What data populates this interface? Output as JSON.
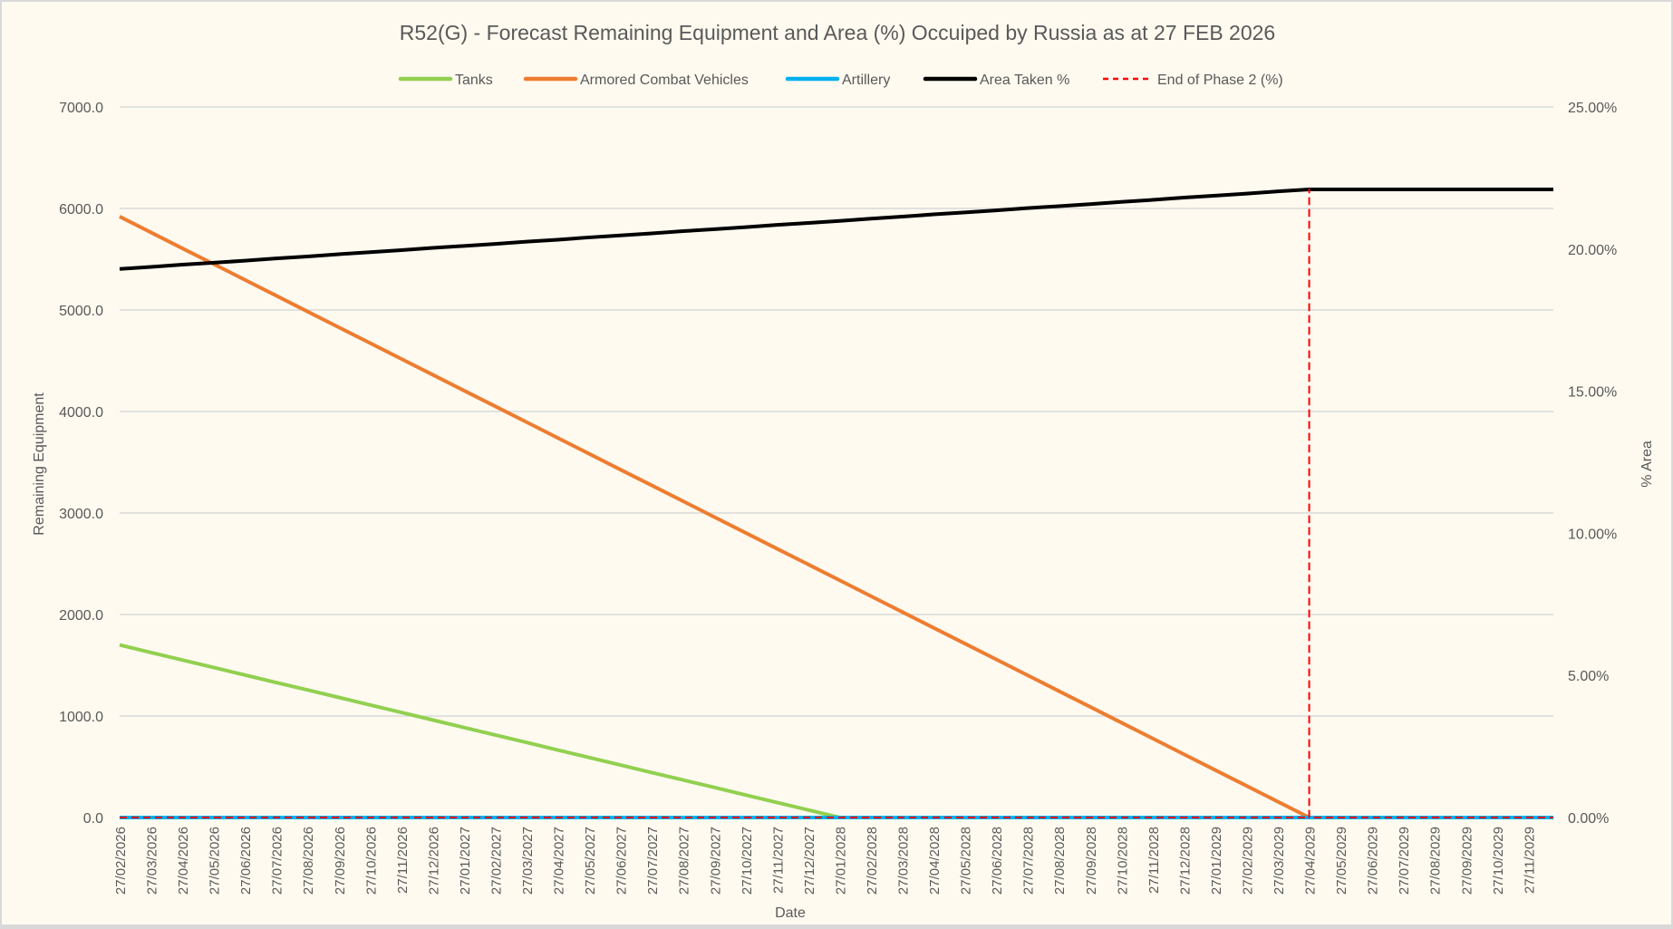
{
  "chart_data": {
    "type": "line",
    "title": "R52(G) - Forecast Remaining Equipment and Area (%) Occuiped by Russia as at 27 FEB 2026",
    "xlabel": "Date",
    "ylabel": "Remaining Equipment",
    "y2label": "% Area",
    "ylim": [
      0,
      7000
    ],
    "y2lim": [
      0,
      25
    ],
    "yticks": [
      "0.0",
      "1000.0",
      "2000.0",
      "3000.0",
      "4000.0",
      "5000.0",
      "6000.0",
      "7000.0"
    ],
    "y2ticks": [
      "0.00%",
      "5.00%",
      "10.00%",
      "15.00%",
      "20.00%",
      "25.00%"
    ],
    "xlim_index": [
      0,
      45.8
    ],
    "grid": true,
    "legend_position": "top",
    "categories": [
      "27/02/2026",
      "27/03/2026",
      "27/04/2026",
      "27/05/2026",
      "27/06/2026",
      "27/07/2026",
      "27/08/2026",
      "27/09/2026",
      "27/10/2026",
      "27/11/2026",
      "27/12/2026",
      "27/01/2027",
      "27/02/2027",
      "27/03/2027",
      "27/04/2027",
      "27/05/2027",
      "27/06/2027",
      "27/07/2027",
      "27/08/2027",
      "27/09/2027",
      "27/10/2027",
      "27/11/2027",
      "27/12/2027",
      "27/01/2028",
      "27/02/2028",
      "27/03/2028",
      "27/04/2028",
      "27/05/2028",
      "27/06/2028",
      "27/07/2028",
      "27/08/2028",
      "27/09/2028",
      "27/10/2028",
      "27/11/2028",
      "27/12/2028",
      "27/01/2029",
      "27/02/2029",
      "27/03/2029",
      "27/04/2029",
      "27/05/2029",
      "27/06/2029",
      "27/07/2029",
      "27/08/2029",
      "27/09/2029",
      "27/10/2029",
      "27/11/2029"
    ],
    "series": [
      {
        "name": "Tanks",
        "axis": "left",
        "color": "#92d050",
        "dash": false,
        "values": [
          1700,
          1626,
          1552,
          1478,
          1404,
          1330,
          1257,
          1183,
          1109,
          1035,
          961,
          887,
          813,
          739,
          665,
          591,
          517,
          443,
          370,
          296,
          222,
          148,
          74,
          0,
          0,
          0,
          0,
          0,
          0,
          0,
          0,
          0,
          0,
          0,
          0,
          0,
          0,
          0,
          0,
          0,
          0,
          0,
          0,
          0,
          0,
          0
        ]
      },
      {
        "name": "Armored Combat Vehicles",
        "axis": "left",
        "color": "#ed7d31",
        "dash": false,
        "values": [
          5920,
          5764,
          5608,
          5453,
          5297,
          5141,
          4985,
          4829,
          4674,
          4518,
          4362,
          4206,
          4051,
          3895,
          3739,
          3583,
          3427,
          3272,
          3116,
          2960,
          2804,
          2648,
          2493,
          2337,
          2181,
          2025,
          1869,
          1714,
          1558,
          1402,
          1246,
          1091,
          935,
          779,
          623,
          467,
          312,
          156,
          0,
          0,
          0,
          0,
          0,
          0,
          0,
          0
        ]
      },
      {
        "name": "Artillery",
        "axis": "left",
        "color": "#00b0f0",
        "dash": false,
        "values": [
          0,
          0,
          0,
          0,
          0,
          0,
          0,
          0,
          0,
          0,
          0,
          0,
          0,
          0,
          0,
          0,
          0,
          0,
          0,
          0,
          0,
          0,
          0,
          0,
          0,
          0,
          0,
          0,
          0,
          0,
          0,
          0,
          0,
          0,
          0,
          0,
          0,
          0,
          0,
          0,
          0,
          0,
          0,
          0,
          0,
          0
        ]
      },
      {
        "name": "Area Taken %",
        "axis": "right",
        "color": "#000000",
        "dash": false,
        "values": [
          19.3,
          19.37,
          19.45,
          19.52,
          19.59,
          19.67,
          19.74,
          19.82,
          19.89,
          19.96,
          20.04,
          20.11,
          20.18,
          20.26,
          20.33,
          20.41,
          20.48,
          20.55,
          20.63,
          20.7,
          20.77,
          20.85,
          20.92,
          20.99,
          21.07,
          21.14,
          21.22,
          21.29,
          21.36,
          21.44,
          21.51,
          21.58,
          21.66,
          21.73,
          21.81,
          21.88,
          21.95,
          22.03,
          22.1,
          22.1,
          22.1,
          22.1,
          22.1,
          22.1,
          22.1,
          22.1
        ]
      },
      {
        "name": "End of Phase 2 (%)",
        "axis": "right",
        "color": "#ff0000",
        "dash": true,
        "points": [
          [
            0,
            0
          ],
          [
            38,
            0
          ],
          [
            38,
            22.1
          ],
          [
            38,
            0
          ],
          [
            45.8,
            0
          ]
        ]
      }
    ]
  }
}
